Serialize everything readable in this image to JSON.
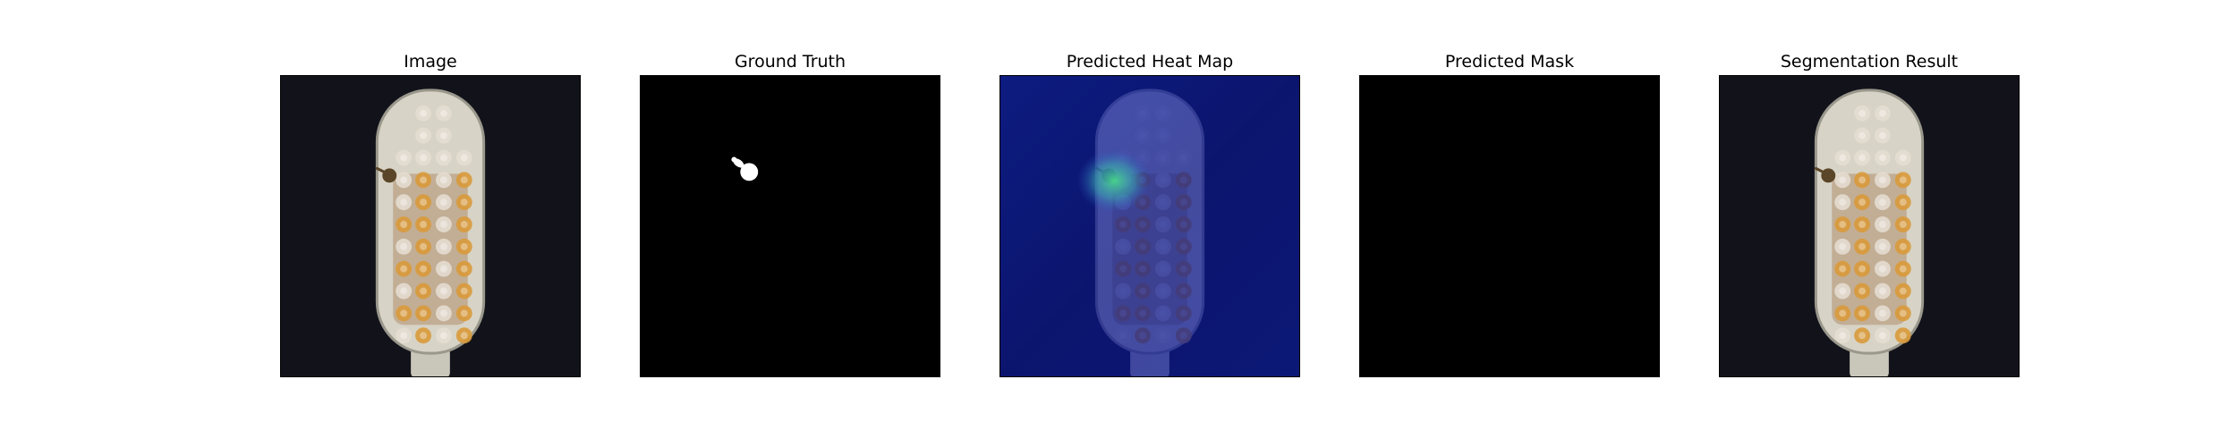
{
  "figure": {
    "panels": [
      {
        "id": "image",
        "title": "Image"
      },
      {
        "id": "ground-truth",
        "title": "Ground Truth"
      },
      {
        "id": "heat-map",
        "title": "Predicted Heat Map"
      },
      {
        "id": "predicted-mask",
        "title": "Predicted Mask"
      },
      {
        "id": "segmentation",
        "title": "Segmentation Result"
      }
    ]
  },
  "colors": {
    "background": "#12131a",
    "brush_head": "#d7d3c6",
    "brush_outline": "#9a978c",
    "bristle_white": "#e4ddd0",
    "bristle_orange": "#d99a3a",
    "bristle_core": "#9a6a3a",
    "defect": "#5a4528",
    "mask_black": "#000000",
    "mask_white": "#ffffff",
    "heat_low": "#0a1a9a",
    "heat_high": "#49d98a"
  }
}
